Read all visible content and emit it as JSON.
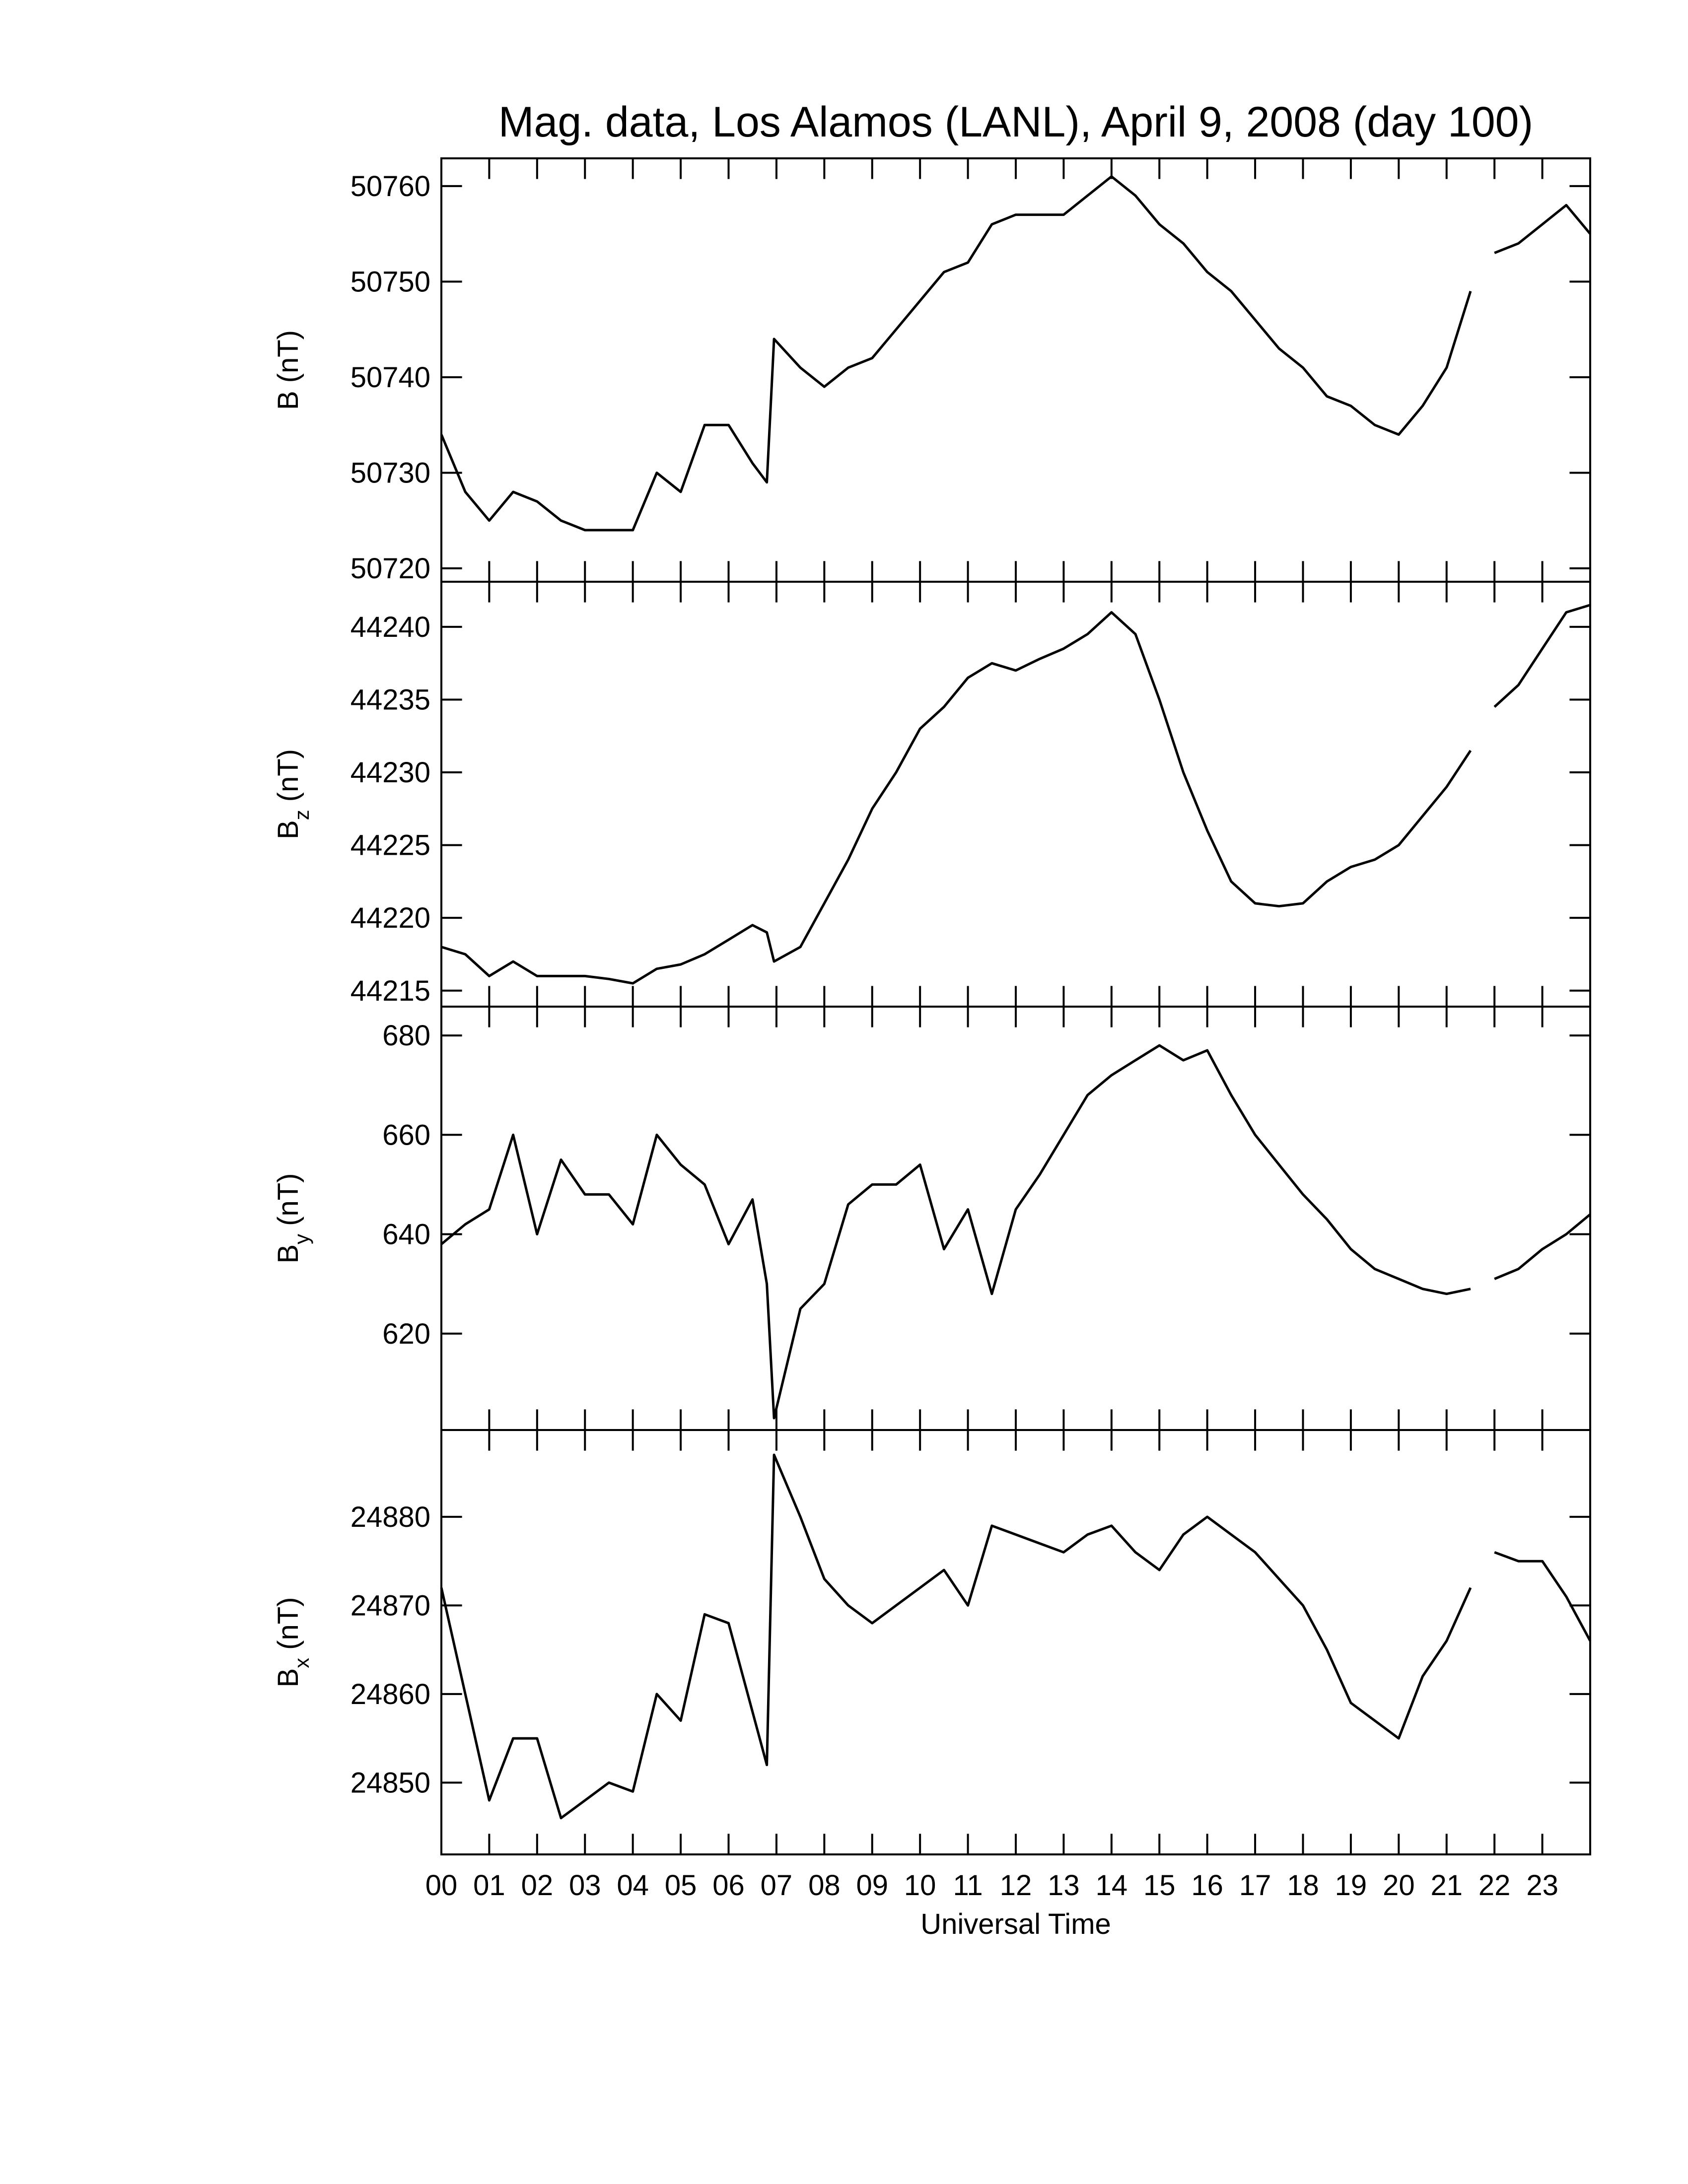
{
  "chart_data": [
    {
      "type": "line",
      "title": "Mag. data, Los Alamos (LANL), April 9, 2008 (day 100)",
      "ylabel": {
        "main": "B",
        "unit": "(nT)"
      },
      "x": [
        0,
        0.5,
        1,
        1.5,
        2,
        2.5,
        3,
        3.5,
        4,
        4.5,
        5,
        5.5,
        6,
        6.5,
        6.8,
        6.95,
        7.5,
        8,
        8.5,
        9,
        9.5,
        10,
        10.5,
        11,
        11.5,
        12,
        12.5,
        13,
        13.5,
        14,
        14.5,
        15,
        15.5,
        16,
        16.5,
        17,
        17.5,
        18,
        18.5,
        19,
        19.5,
        20,
        20.5,
        21,
        21.5,
        21.75,
        22,
        22.5,
        23,
        23.5,
        24
      ],
      "series": [
        {
          "color": "#000000",
          "values": [
            50734,
            50728,
            50725,
            50728,
            50727,
            50725,
            50724,
            50724,
            50724,
            50730,
            50728,
            50735,
            50735,
            50731,
            50729,
            50744,
            50741,
            50739,
            50741,
            50742,
            50745,
            50748,
            50751,
            50752,
            50756,
            50757,
            50757,
            50757,
            50759,
            50761,
            50759,
            50756,
            50754,
            50751,
            50749,
            50746,
            50743,
            50741,
            50738,
            50737,
            50735,
            50734,
            50737,
            50741,
            50749,
            null,
            50753,
            50754,
            50756,
            50758,
            50755
          ]
        }
      ],
      "xlim": [
        0,
        24
      ],
      "ylim": [
        50718.6,
        50762.9
      ],
      "yticks": [
        50720,
        50730,
        50740,
        50750,
        50760
      ]
    },
    {
      "type": "line",
      "ylabel": {
        "main": "B",
        "sub": "z",
        "unit": "(nT)"
      },
      "x": [
        0,
        0.5,
        1,
        1.5,
        2,
        2.5,
        3,
        3.5,
        4,
        4.5,
        5,
        5.5,
        6,
        6.5,
        6.8,
        6.95,
        7.5,
        8,
        8.5,
        9,
        9.5,
        10,
        10.5,
        11,
        11.5,
        12,
        12.5,
        13,
        13.5,
        14,
        14.5,
        15,
        15.5,
        16,
        16.5,
        17,
        17.5,
        18,
        18.5,
        19,
        19.5,
        20,
        20.5,
        21,
        21.5,
        21.75,
        22,
        22.5,
        23,
        23.5,
        24
      ],
      "series": [
        {
          "color": "#000000",
          "values": [
            44218,
            44217.5,
            44216,
            44217,
            44216,
            44216,
            44216,
            44215.8,
            44215.5,
            44216.5,
            44216.8,
            44217.5,
            44218.5,
            44219.5,
            44219,
            44217,
            44218,
            44221,
            44224,
            44227.5,
            44230,
            44233,
            44234.5,
            44236.5,
            44237.5,
            44237,
            44237.8,
            44238.5,
            44239.5,
            44241,
            44239.5,
            44235,
            44230,
            44226,
            44222.5,
            44221,
            44220.8,
            44221,
            44222.5,
            44223.5,
            44224,
            44225,
            44227,
            44229,
            44231.5,
            null,
            44234.5,
            44236,
            44238.5,
            44241,
            44241.5
          ]
        }
      ],
      "xlim": [
        0,
        24
      ],
      "ylim": [
        44213.9,
        44243.1
      ],
      "yticks": [
        44215,
        44220,
        44225,
        44230,
        44235,
        44240
      ]
    },
    {
      "type": "line",
      "ylabel": {
        "main": "B",
        "sub": "y",
        "unit": "(nT)"
      },
      "x": [
        0,
        0.5,
        1,
        1.5,
        2,
        2.5,
        3,
        3.5,
        4,
        4.5,
        5,
        5.5,
        6,
        6.5,
        6.8,
        6.95,
        7.5,
        8,
        8.5,
        9,
        9.5,
        10,
        10.5,
        11,
        11.5,
        12,
        12.5,
        13,
        13.5,
        14,
        14.5,
        15,
        15.5,
        16,
        16.5,
        17,
        17.5,
        18,
        18.5,
        19,
        19.5,
        20,
        20.5,
        21,
        21.5,
        21.75,
        22,
        22.5,
        23,
        23.5,
        24
      ],
      "series": [
        {
          "color": "#000000",
          "values": [
            638,
            642,
            645,
            660,
            640,
            655,
            648,
            648,
            642,
            660,
            654,
            650,
            638,
            647,
            630,
            603,
            625,
            630,
            646,
            650,
            650,
            654,
            637,
            645,
            628,
            645,
            652,
            660,
            668,
            672,
            675,
            678,
            675,
            677,
            668,
            660,
            654,
            648,
            643,
            637,
            633,
            631,
            629,
            628,
            629,
            null,
            631,
            633,
            637,
            640,
            644
          ]
        }
      ],
      "xlim": [
        0,
        24
      ],
      "ylim": [
        600.6,
        685.8
      ],
      "yticks": [
        620,
        640,
        660,
        680
      ]
    },
    {
      "type": "line",
      "ylabel": {
        "main": "B",
        "sub": "x",
        "unit": "(nT)"
      },
      "xlabel": "Universal Time",
      "x": [
        0,
        0.5,
        1,
        1.5,
        2,
        2.5,
        3,
        3.5,
        4,
        4.5,
        5,
        5.5,
        6,
        6.5,
        6.8,
        6.95,
        7.5,
        8,
        8.5,
        9,
        9.5,
        10,
        10.5,
        11,
        11.5,
        12,
        12.5,
        13,
        13.5,
        14,
        14.5,
        15,
        15.5,
        16,
        16.5,
        17,
        17.5,
        18,
        18.5,
        19,
        19.5,
        20,
        20.5,
        21,
        21.5,
        21.75,
        22,
        22.5,
        23,
        23.5,
        24
      ],
      "series": [
        {
          "color": "#000000",
          "values": [
            24872,
            24860,
            24848,
            24855,
            24855,
            24846,
            24848,
            24850,
            24849,
            24860,
            24857,
            24869,
            24868,
            24858,
            24852,
            24887,
            24880,
            24873,
            24870,
            24868,
            24870,
            24872,
            24874,
            24870,
            24879,
            24878,
            24877,
            24876,
            24878,
            24879,
            24876,
            24874,
            24878,
            24880,
            24878,
            24876,
            24873,
            24870,
            24865,
            24859,
            24857,
            24855,
            24862,
            24866,
            24872,
            null,
            24876,
            24875,
            24875,
            24871,
            24866
          ]
        }
      ],
      "xlim": [
        0,
        24
      ],
      "ylim": [
        24841.9,
        24889.8
      ],
      "yticks": [
        24850,
        24860,
        24870,
        24880
      ],
      "xticks": [
        {
          "value": 0,
          "label": "00"
        },
        {
          "value": 1,
          "label": "01"
        },
        {
          "value": 2,
          "label": "02"
        },
        {
          "value": 3,
          "label": "03"
        },
        {
          "value": 4,
          "label": "04"
        },
        {
          "value": 5,
          "label": "05"
        },
        {
          "value": 6,
          "label": "06"
        },
        {
          "value": 7,
          "label": "07"
        },
        {
          "value": 8,
          "label": "08"
        },
        {
          "value": 9,
          "label": "09"
        },
        {
          "value": 10,
          "label": "10"
        },
        {
          "value": 11,
          "label": "11"
        },
        {
          "value": 12,
          "label": "12"
        },
        {
          "value": 13,
          "label": "13"
        },
        {
          "value": 14,
          "label": "14"
        },
        {
          "value": 15,
          "label": "15"
        },
        {
          "value": 16,
          "label": "16"
        },
        {
          "value": 17,
          "label": "17"
        },
        {
          "value": 18,
          "label": "18"
        },
        {
          "value": 19,
          "label": "19"
        },
        {
          "value": 20,
          "label": "20"
        },
        {
          "value": 21,
          "label": "21"
        },
        {
          "value": 22,
          "label": "22"
        },
        {
          "value": 23,
          "label": "23"
        }
      ]
    }
  ]
}
